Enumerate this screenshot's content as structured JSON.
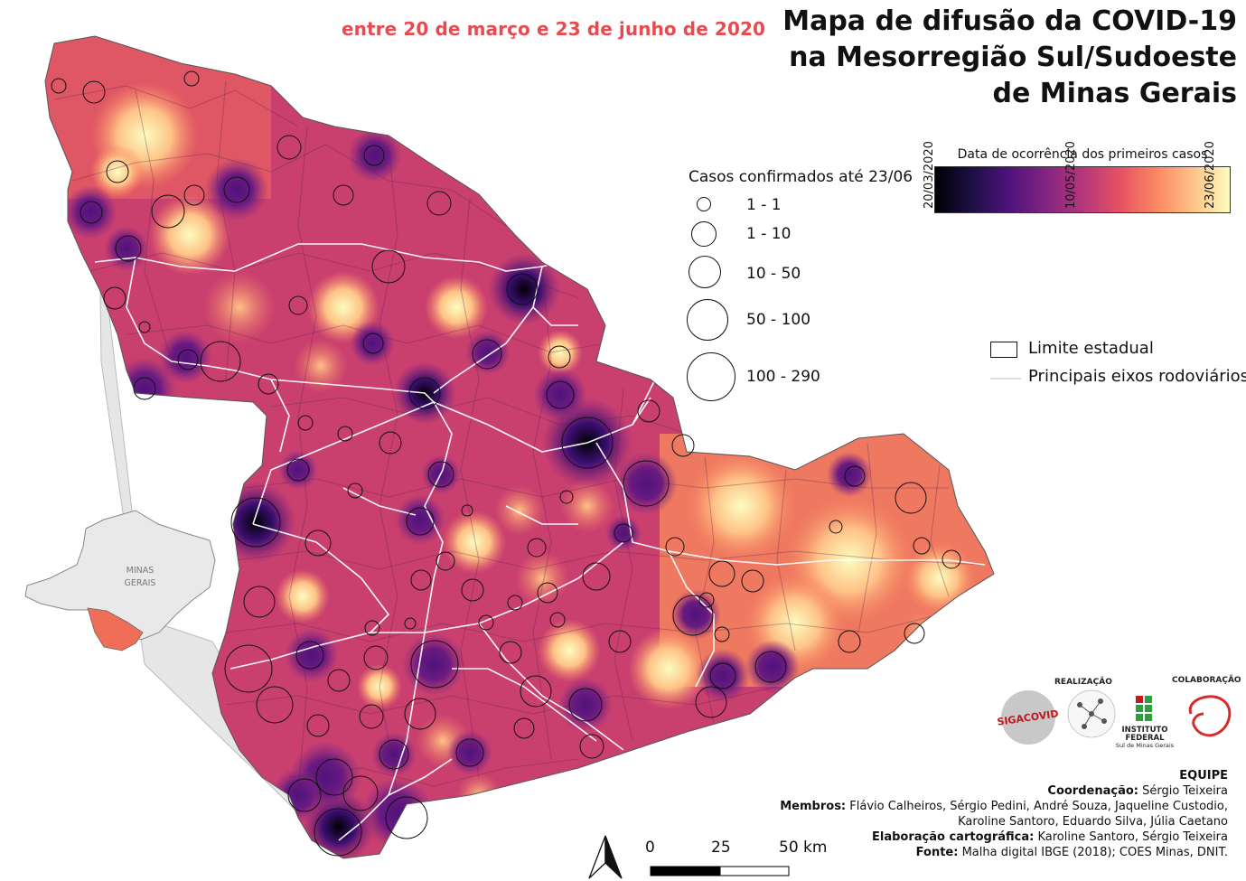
{
  "subtitle": "entre 20 de março e 23 de junho de 2020",
  "title_lines": [
    "Mapa de difusão da COVID-19",
    "na Mesorregião Sul/Sudoeste",
    "de Minas Gerais"
  ],
  "size_legend": {
    "title": "Casos confirmados até 23/06",
    "classes": [
      "1 - 1",
      "1 - 10",
      "10 - 50",
      "50 - 100",
      "100 - 290"
    ]
  },
  "color_legend": {
    "title": "Data de ocorrência dos primeiros casos",
    "ticks": [
      "20/03/2020",
      "10/05/2020",
      "23/06/2020"
    ],
    "colors": [
      "#000004",
      "#4f127b",
      "#b5367a",
      "#fb8761",
      "#fcfdbf"
    ]
  },
  "map_legend": {
    "state_limit": "Limite estadual",
    "roads": "Principais eixos rodoviários"
  },
  "inset": {
    "state_label_line1": "MINAS",
    "state_label_line2": "GERAIS"
  },
  "logos": {
    "realizacao": "REALIZAÇÃO",
    "colaboracao": "COLABORAÇÃO",
    "siga_covid": "SIGACOVID",
    "if_name_1": "INSTITUTO",
    "if_name_2": "FEDERAL",
    "if_name_3": "Sul de Minas Gerais"
  },
  "credits": {
    "team_heading": "EQUIPE",
    "coord_label": "Coordenação:",
    "coord_value": " Sérgio Teixeira",
    "members_label": "Membros:",
    "members_value_1": " Flávio Calheiros, Sérgio Pedini, André Souza, Jaqueline Custodio,",
    "members_value_2": "Karoline Santoro, Eduardo Silva, Júlia Caetano",
    "carto_label": "Elaboração cartográfica:",
    "carto_value": " Karoline Santoro, Sérgio Teixeira",
    "source_label": "Fonte:",
    "source_value": " Malha digital IBGE (2018); COES Minas, DNIT."
  },
  "scale_bar": {
    "labels": [
      "0",
      "25",
      "50 km"
    ]
  }
}
